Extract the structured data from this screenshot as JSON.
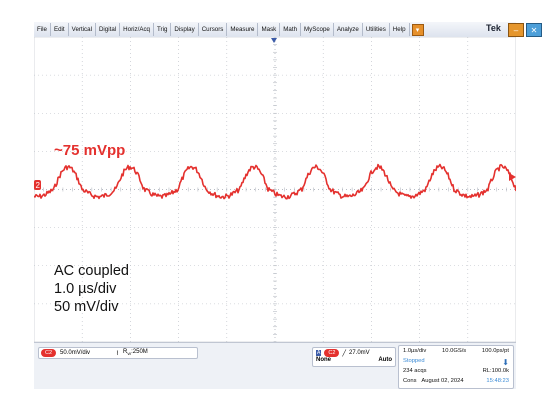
{
  "menubar": {
    "items": [
      "File",
      "Edit",
      "Vertical",
      "Digital",
      "Horiz/Acq",
      "Trig",
      "Display",
      "Cursors",
      "Measure",
      "Mask",
      "Math",
      "MyScope",
      "Analyze",
      "Utilities",
      "Help"
    ],
    "logo": "Tek"
  },
  "plot": {
    "channel_marker": "2",
    "annotation": "~75 mVpp",
    "trace_color": "#e4312e",
    "settings": [
      "AC coupled",
      "1.0 µs/div",
      "50 mV/div"
    ]
  },
  "status": {
    "channel": {
      "badge": "C2",
      "scale": "50.0mV/div",
      "bandwidth": "250M"
    },
    "trigger": {
      "badge": "C2",
      "level": "27.0mV",
      "type": "None",
      "mode": "Auto"
    },
    "acquisition": {
      "time_div": "1.0µs/div",
      "sample_rate": "10.0GS/s",
      "pt_spacing": "100.0ps/pt",
      "state": "Stopped",
      "acqs": "234 acqs",
      "record_length": "RL:100.0k",
      "date_label": "Cons",
      "date": "August 02, 2024",
      "time": "15:48:23"
    }
  },
  "colors": {
    "trace": "#e4312e",
    "grid": "#b8bcc4",
    "menubar": "#dde3ee"
  }
}
